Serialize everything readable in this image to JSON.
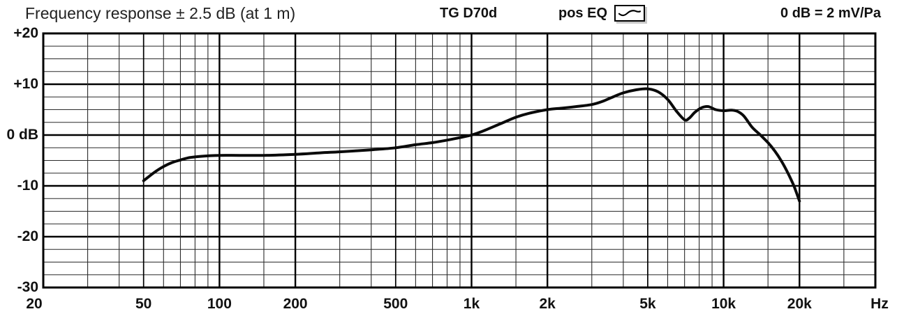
{
  "header": {
    "title": "Frequency response ± 2.5 dB (at 1 m)",
    "model": "TG D70d",
    "eq_label": "pos EQ",
    "eq_icon": "eq-curve-icon",
    "sensitivity": "0 dB = 2 mV/Pa"
  },
  "colors": {
    "curve": "#0a0a0a",
    "grid_major": "#000000",
    "grid_minor": "#2a2a2a",
    "frame": "#000000",
    "background": "#ffffff",
    "icon_shadow": "#c9c9c9"
  },
  "chart_data": {
    "type": "line",
    "title": "Frequency response ± 2.5 dB (at 1 m)",
    "xlabel": "Hz",
    "ylabel": "dB",
    "x_scale": "log",
    "x_range_hz": [
      20,
      40000
    ],
    "y_range_db": [
      -30,
      20
    ],
    "y_major_step_db": 10,
    "y_minor_step_db": 2.5,
    "y_tick_labels": [
      "+20",
      "+10",
      "0 dB",
      "-10",
      "-20",
      "-30"
    ],
    "y_tick_values": [
      20,
      10,
      0,
      -10,
      -20,
      -30
    ],
    "x_tick_labels": [
      "20",
      "50",
      "100",
      "200",
      "500",
      "1k",
      "2k",
      "5k",
      "10k",
      "20k"
    ],
    "x_tick_freqs": [
      20,
      50,
      100,
      200,
      500,
      1000,
      2000,
      5000,
      10000,
      20000
    ],
    "x_unit": "Hz",
    "grid": {
      "vertical_minor": [
        30,
        40,
        60,
        70,
        80,
        90,
        150,
        300,
        400,
        600,
        700,
        800,
        900,
        1500,
        3000,
        4000,
        6000,
        7000,
        8000,
        9000,
        15000,
        30000
      ],
      "vertical_medium": [
        50,
        500,
        5000
      ],
      "vertical_major": [
        100,
        200,
        1000,
        2000,
        10000,
        20000
      ]
    },
    "legend": "none",
    "series": [
      {
        "name": "frequency-response",
        "points_hz_db": [
          [
            50,
            -9.0
          ],
          [
            55,
            -7.4
          ],
          [
            60,
            -6.2
          ],
          [
            65,
            -5.4
          ],
          [
            70,
            -4.9
          ],
          [
            75,
            -4.5
          ],
          [
            80,
            -4.3
          ],
          [
            90,
            -4.1
          ],
          [
            100,
            -4.0
          ],
          [
            120,
            -4.0
          ],
          [
            150,
            -4.0
          ],
          [
            200,
            -3.8
          ],
          [
            250,
            -3.5
          ],
          [
            300,
            -3.3
          ],
          [
            400,
            -2.9
          ],
          [
            500,
            -2.5
          ],
          [
            600,
            -1.9
          ],
          [
            700,
            -1.5
          ],
          [
            800,
            -1.0
          ],
          [
            900,
            -0.5
          ],
          [
            1000,
            0.0
          ],
          [
            1100,
            0.7
          ],
          [
            1300,
            2.2
          ],
          [
            1500,
            3.5
          ],
          [
            1700,
            4.3
          ],
          [
            2000,
            5.0
          ],
          [
            2300,
            5.3
          ],
          [
            2600,
            5.6
          ],
          [
            3000,
            6.0
          ],
          [
            3300,
            6.6
          ],
          [
            3600,
            7.4
          ],
          [
            4000,
            8.3
          ],
          [
            4500,
            8.9
          ],
          [
            5000,
            9.1
          ],
          [
            5500,
            8.5
          ],
          [
            6000,
            7.0
          ],
          [
            6500,
            4.7
          ],
          [
            7000,
            3.0
          ],
          [
            7300,
            3.3
          ],
          [
            7700,
            4.5
          ],
          [
            8200,
            5.4
          ],
          [
            8700,
            5.6
          ],
          [
            9300,
            5.0
          ],
          [
            10000,
            4.8
          ],
          [
            10700,
            4.9
          ],
          [
            11300,
            4.7
          ],
          [
            12000,
            3.8
          ],
          [
            13000,
            1.5
          ],
          [
            14000,
            0.0
          ],
          [
            15000,
            -1.5
          ],
          [
            16000,
            -3.2
          ],
          [
            17000,
            -5.2
          ],
          [
            18000,
            -7.5
          ],
          [
            19000,
            -10.0
          ],
          [
            20000,
            -13.0
          ]
        ]
      }
    ]
  }
}
